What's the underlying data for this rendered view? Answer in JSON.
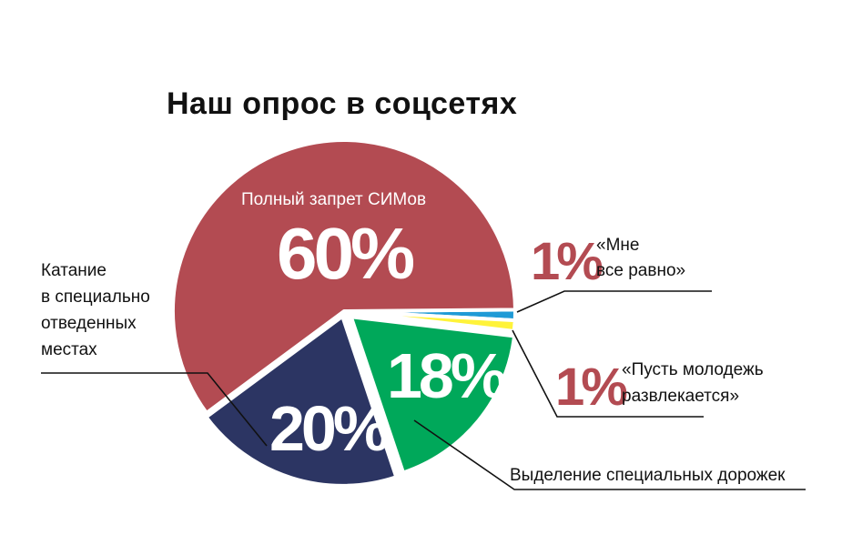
{
  "chart_data": {
    "type": "pie",
    "title": "Наш опрос в соцсетях",
    "slices": [
      {
        "label": "Полный запрет СИМов",
        "value": 60,
        "value_label": "60%",
        "color": "#b34b52"
      },
      {
        "label": "Выделение специальных дорожек",
        "value": 18,
        "value_label": "18%",
        "color": "#00a85a"
      },
      {
        "label": "Катание в специально отведенных местах",
        "value": 20,
        "value_label": "20%",
        "color": "#2c3563"
      },
      {
        "label": "«Пусть молодежь развлекается»",
        "value": 1,
        "value_label": "1%",
        "color": "#fff33a"
      },
      {
        "label": "«Мне все равно»",
        "value": 1,
        "value_label": "1%",
        "color": "#1f9ad6"
      }
    ]
  },
  "labels": {
    "title": "Наш опрос в соцсетях",
    "zapret_name": "Полный запрет СИМов",
    "zapret_pct": "60%",
    "katanie_lines": [
      "Катание",
      "в специально",
      "отведенных",
      "местах"
    ],
    "katanie_pct": "20%",
    "dorozhki_pct": "18%",
    "dorozhki_name": "Выделение специальных дорожек",
    "ravno_pct": "1%",
    "ravno_lines": [
      "«Мне",
      "все равно»"
    ],
    "molodezh_pct": "1%",
    "molodezh_lines": [
      "«Пусть молодежь",
      "развлекается»"
    ]
  }
}
